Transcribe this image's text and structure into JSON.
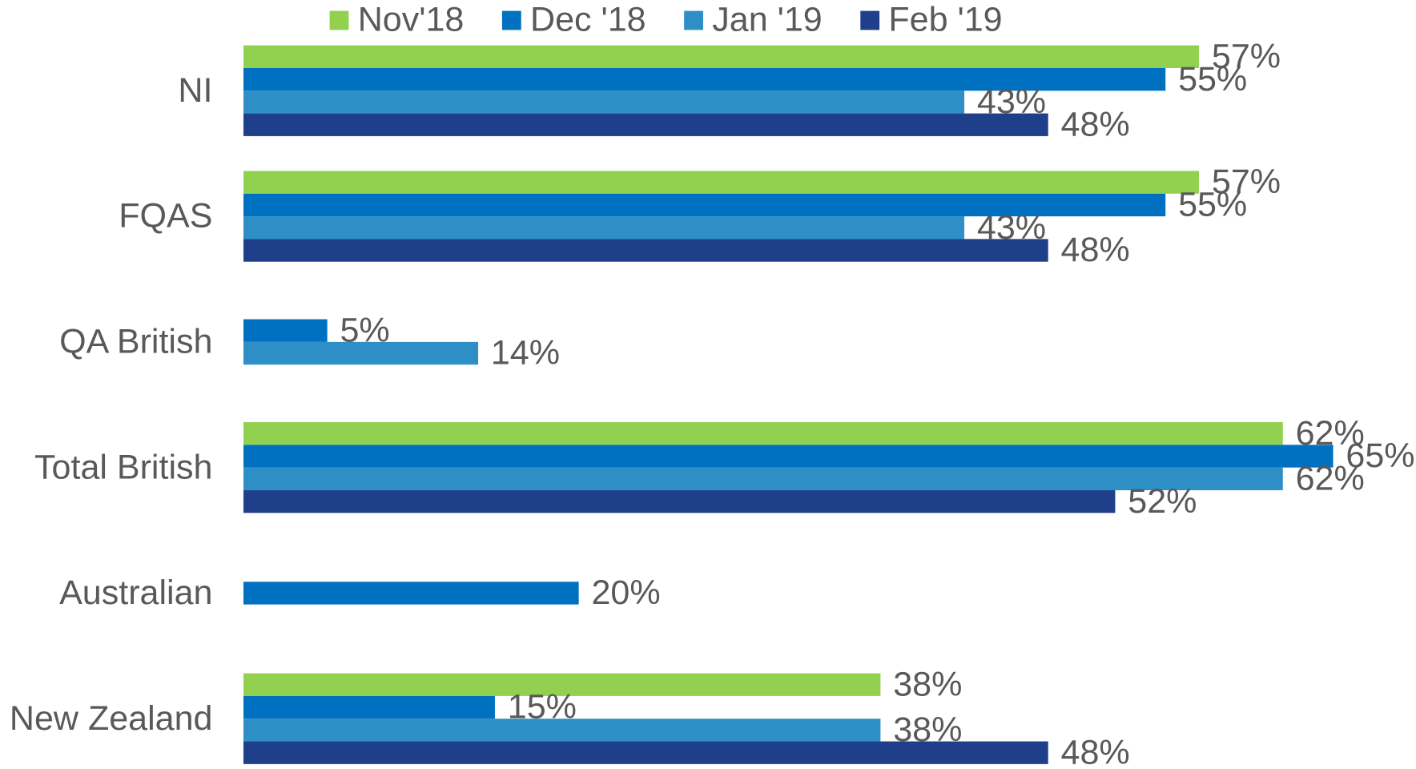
{
  "chart_data": {
    "type": "bar",
    "orientation": "horizontal",
    "legend": "top",
    "categories": [
      "NI",
      "FQAS",
      "QA British",
      "Total British",
      "Australian",
      "New Zealand"
    ],
    "series": [
      {
        "name": "Nov'18",
        "color": "#92d050",
        "values": [
          57,
          57,
          null,
          62,
          null,
          38
        ],
        "value_labels": [
          "57%",
          "57%",
          null,
          "62%",
          null,
          "38%"
        ]
      },
      {
        "name": "Dec '18",
        "color": "#0070c0",
        "values": [
          55,
          55,
          5,
          65,
          20,
          15
        ],
        "value_labels": [
          "55%",
          "55%",
          "5%",
          "65%",
          "20%",
          "15%"
        ]
      },
      {
        "name": "Jan '19",
        "color": "#2e8fc6",
        "values": [
          43,
          43,
          14,
          62,
          null,
          38
        ],
        "value_labels": [
          "43%",
          "43%",
          "14%",
          "62%",
          null,
          "38%"
        ]
      },
      {
        "name": "Feb '19",
        "color": "#1f3f8a",
        "values": [
          48,
          48,
          null,
          52,
          null,
          48
        ],
        "value_labels": [
          "48%",
          "48%",
          null,
          "52%",
          null,
          "48%"
        ]
      }
    ]
  }
}
